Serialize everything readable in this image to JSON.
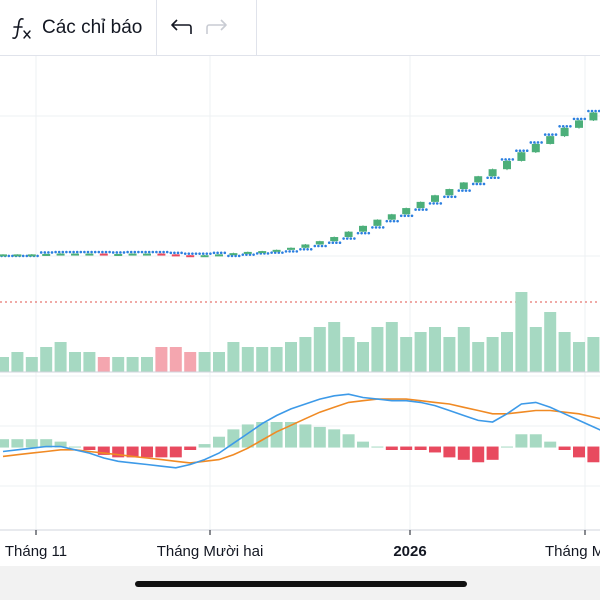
{
  "toolbar": {
    "indicators_label": "Các chỉ báo",
    "icons": {
      "indicators": "function-fx-icon",
      "undo": "undo-arrow-icon",
      "redo": "redo-arrow-icon"
    }
  },
  "colors": {
    "up": "#26a69a",
    "up_candle": "#4caf7a",
    "down": "#e84a5f",
    "vol_up": "#a6d9c2",
    "vol_down": "#f4a6af",
    "macd": "#3d9ae8",
    "signal": "#f08a24",
    "sar": "#2b7fe0",
    "grid": "#eef0f3",
    "sep_dotted": "#e2554d"
  },
  "chart_data": {
    "type": "candlestick",
    "x_ticks": [
      {
        "label": "Tháng 11",
        "bold": false
      },
      {
        "label": "Tháng Mười hai",
        "bold": false
      },
      {
        "label": "2026",
        "bold": true
      },
      {
        "label": "Tháng M",
        "bold": false
      }
    ],
    "candles": [
      [
        0.0,
        0.0,
        0.3
      ],
      [
        0.0,
        0.0,
        0.2
      ],
      [
        0.0,
        0.0,
        0.5
      ],
      [
        0.5,
        0.5,
        0.5
      ],
      [
        0.5,
        0.5,
        0.5
      ],
      [
        0.0,
        0.0,
        0.2
      ],
      [
        0.0,
        0.0,
        0.2
      ],
      [
        -0.5,
        -0.5,
        0.3
      ],
      [
        0.0,
        0.0,
        0.2
      ],
      [
        0.5,
        0.5,
        0.2
      ],
      [
        0.0,
        0.0,
        0.2
      ],
      [
        -1.0,
        -1.0,
        0.4
      ],
      [
        -1.0,
        -1.0,
        0.4
      ],
      [
        -0.5,
        -0.5,
        0.6
      ],
      [
        0.5,
        0.5,
        0.6
      ],
      [
        1.0,
        1.0,
        0.5
      ],
      [
        1.5,
        1.5,
        0.8
      ],
      [
        1.5,
        1.5,
        0.5
      ],
      [
        1.0,
        1.0,
        0.4
      ],
      [
        1.5,
        1.5,
        0.5
      ],
      [
        2.5,
        2.5,
        0.6
      ],
      [
        4.0,
        4.0,
        0.8
      ],
      [
        4.0,
        4.0,
        0.6
      ],
      [
        5.0,
        5.0,
        0.8
      ],
      [
        6.5,
        6.5,
        0.8
      ],
      [
        7.0,
        7.0,
        0.8
      ],
      [
        7.5,
        7.5,
        0.6
      ],
      [
        6.5,
        6.5,
        0.7
      ],
      [
        7.5,
        7.5,
        0.7
      ],
      [
        7.5,
        7.5,
        0.6
      ],
      [
        8.0,
        8.0,
        0.8
      ],
      [
        7.5,
        7.5,
        0.6
      ],
      [
        8.0,
        8.0,
        0.6
      ],
      [
        7.5,
        7.5,
        0.6
      ],
      [
        8.5,
        8.5,
        1.0
      ],
      [
        10.0,
        10.0,
        1.5
      ],
      [
        10.5,
        10.5,
        1.0
      ],
      [
        10.0,
        10.0,
        1.2
      ],
      [
        9.5,
        9.5,
        0.8
      ],
      [
        10.0,
        10.0,
        1.5
      ],
      [
        9.0,
        9.0,
        1.2
      ],
      [
        9.5,
        9.5,
        1.0
      ],
      [
        8.5,
        8.5,
        0.8
      ]
    ],
    "ohlc_note": "candles as [open, close, wick] deltas from previous close",
    "start_price": 24.0,
    "volume": [
      3,
      4,
      3,
      5,
      6,
      4,
      4,
      3,
      3,
      3,
      3,
      5,
      5,
      4,
      4,
      4,
      6,
      5,
      5,
      5,
      6,
      7,
      9,
      10,
      7,
      6,
      9,
      10,
      7,
      8,
      9,
      7,
      9,
      6,
      7,
      8,
      16,
      9,
      12,
      8,
      6,
      7,
      9
    ],
    "macd_line": [
      -0.3,
      -0.2,
      -0.1,
      0.0,
      0.0,
      -0.2,
      -0.4,
      -0.7,
      -0.9,
      -1.0,
      -1.1,
      -1.2,
      -1.3,
      -1.1,
      -0.8,
      -0.4,
      0.2,
      0.8,
      1.4,
      1.9,
      2.3,
      2.6,
      2.9,
      3.1,
      3.2,
      3.0,
      2.9,
      2.8,
      2.8,
      2.7,
      2.5,
      2.2,
      1.9,
      1.6,
      1.5,
      2.0,
      2.6,
      2.7,
      2.4,
      2.0,
      1.6,
      1.2,
      0.8
    ],
    "signal_line": [
      -0.6,
      -0.5,
      -0.4,
      -0.3,
      -0.2,
      -0.2,
      -0.3,
      -0.4,
      -0.5,
      -0.6,
      -0.7,
      -0.8,
      -0.9,
      -1.0,
      -0.9,
      -0.8,
      -0.5,
      -0.1,
      0.4,
      0.9,
      1.3,
      1.7,
      2.1,
      2.4,
      2.7,
      2.8,
      2.9,
      2.9,
      2.9,
      2.8,
      2.7,
      2.6,
      2.4,
      2.2,
      2.0,
      2.0,
      2.1,
      2.2,
      2.2,
      2.1,
      2.0,
      1.8,
      1.6
    ]
  }
}
